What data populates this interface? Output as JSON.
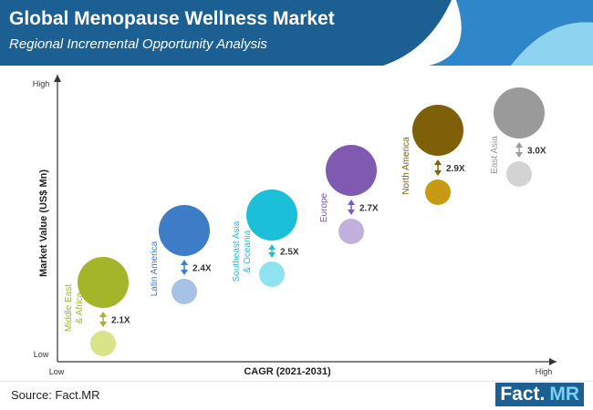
{
  "header": {
    "title": "Global Menopause Wellness Market",
    "subtitle": "Regional Incremental Opportunity Analysis"
  },
  "footer": {
    "source": "Source: Fact.MR",
    "logo_main": "Fact.",
    "logo_accent": "MR"
  },
  "chart_data": {
    "type": "scatter",
    "title": "Global Menopause Wellness Market",
    "subtitle": "Regional Incremental Opportunity Analysis",
    "xlabel": "CAGR (2021-2031)",
    "ylabel": "Market Value (US$ Mn)",
    "x_ticks": [
      "Low",
      "High"
    ],
    "y_ticks": [
      "Low",
      "High"
    ],
    "series": [
      {
        "name": "Middle East & Africa",
        "label_lines": [
          "Middle East",
          "& Africa"
        ],
        "multiplier": "2.1X",
        "color": "#a4b52a",
        "light_color": "#d8e38a",
        "rank": 1
      },
      {
        "name": "Latin America",
        "label_lines": [
          "Latin America"
        ],
        "multiplier": "2.4X",
        "color": "#3f7cc8",
        "light_color": "#a6c2e4",
        "rank": 2
      },
      {
        "name": "Southeast Asia & Oceania",
        "label_lines": [
          "Southeast Asia",
          "& Oceania"
        ],
        "multiplier": "2.5X",
        "color": "#1bbfd8",
        "light_color": "#8fe3f0",
        "rank": 3
      },
      {
        "name": "Europe",
        "label_lines": [
          "Europe"
        ],
        "multiplier": "2.7X",
        "color": "#7f5ab0",
        "light_color": "#c2b0dc",
        "rank": 4
      },
      {
        "name": "North America",
        "label_lines": [
          "North America"
        ],
        "multiplier": "2.9X",
        "color": "#7d6008",
        "light_color": "#c79a14",
        "rank": 5
      },
      {
        "name": "East Asia",
        "label_lines": [
          "East Asia"
        ],
        "multiplier": "3.0X",
        "color": "#9a9a9a",
        "light_color": "#d3d3d3",
        "rank": 6
      }
    ],
    "colors": {
      "header_dark": "#1b5f93",
      "header_mid": "#2f86c8",
      "header_light": "#8ed3ef"
    }
  }
}
